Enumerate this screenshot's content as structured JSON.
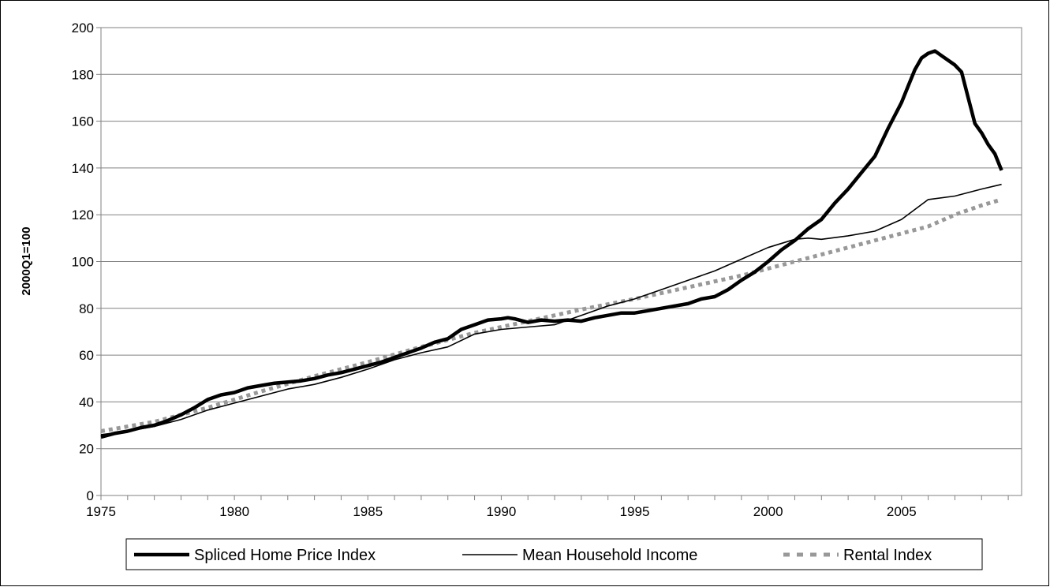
{
  "chart_data": {
    "type": "line",
    "title": "",
    "xlabel": "",
    "ylabel": "2000Q1=100",
    "xlim": [
      1975,
      2009.5
    ],
    "ylim": [
      0,
      200
    ],
    "x_ticks": [
      1975,
      1980,
      1985,
      1990,
      1995,
      2000,
      2005
    ],
    "x_tick_labels": [
      "1975",
      "1980",
      "1985",
      "1990",
      "1995",
      "2000",
      "2005"
    ],
    "y_ticks": [
      0,
      20,
      40,
      60,
      80,
      100,
      120,
      140,
      160,
      180,
      200
    ],
    "y_tick_labels": [
      "0",
      "20",
      "40",
      "60",
      "80",
      "100",
      "120",
      "140",
      "160",
      "180",
      "200"
    ],
    "grid": "horizontal",
    "legend_position": "bottom",
    "series": [
      {
        "name": "Spliced Home Price Index",
        "style": "thick-solid",
        "color": "#000000",
        "x": [
          1975,
          1975.5,
          1976,
          1976.5,
          1977,
          1977.5,
          1978,
          1978.5,
          1979,
          1979.5,
          1980,
          1980.5,
          1981,
          1981.5,
          1982,
          1982.5,
          1983,
          1983.5,
          1984,
          1984.5,
          1985,
          1985.5,
          1986,
          1986.5,
          1987,
          1987.5,
          1988,
          1988.25,
          1988.5,
          1989,
          1989.5,
          1990,
          1990.25,
          1990.5,
          1991,
          1991.5,
          1992,
          1992.5,
          1993,
          1993.5,
          1994,
          1994.5,
          1995,
          1995.5,
          1996,
          1996.5,
          1997,
          1997.5,
          1998,
          1998.5,
          1999,
          1999.5,
          2000,
          2000.5,
          2001,
          2001.5,
          2002,
          2002.5,
          2003,
          2003.5,
          2004,
          2004.5,
          2005,
          2005.25,
          2005.5,
          2005.75,
          2006,
          2006.25,
          2006.5,
          2006.75,
          2007,
          2007.25,
          2007.5,
          2007.75,
          2008,
          2008.25,
          2008.5,
          2008.75
        ],
        "y": [
          25,
          26.5,
          27.5,
          29,
          30,
          32,
          34.5,
          37.5,
          41,
          43,
          44,
          46,
          47,
          48,
          48.5,
          49,
          50,
          51.5,
          52.5,
          54,
          55.5,
          57,
          59,
          61,
          63,
          65.5,
          67,
          69,
          71,
          73,
          75,
          75.5,
          76,
          75.5,
          74,
          75,
          74.5,
          75,
          74.5,
          76,
          77,
          78,
          78,
          79,
          80,
          81,
          82,
          84,
          85,
          88,
          92,
          95.5,
          100,
          105,
          109,
          114,
          118,
          125,
          131,
          138,
          145,
          157,
          168,
          175,
          182,
          187,
          189,
          190,
          188,
          186,
          184,
          181,
          170,
          159,
          155,
          150,
          146,
          139
        ]
      },
      {
        "name": "Mean Household Income",
        "style": "thin-solid",
        "color": "#000000",
        "x": [
          1975,
          1976,
          1977,
          1978,
          1979,
          1980,
          1981,
          1982,
          1983,
          1984,
          1985,
          1986,
          1987,
          1988,
          1989,
          1990,
          1991,
          1992,
          1993,
          1994,
          1995,
          1996,
          1997,
          1998,
          1999,
          2000,
          2001,
          2001.5,
          2002,
          2003,
          2004,
          2005,
          2006,
          2007,
          2008,
          2008.75
        ],
        "y": [
          26,
          27.5,
          29.5,
          32.5,
          36.5,
          39.5,
          42.5,
          45.5,
          47.5,
          50.5,
          54,
          58,
          61,
          63.5,
          69,
          71,
          72,
          73,
          77,
          81,
          84,
          88,
          92,
          96,
          101,
          106,
          109.5,
          110,
          109.5,
          111,
          113,
          118,
          126.5,
          128,
          131,
          133
        ]
      },
      {
        "name": "Rental Index",
        "style": "dotted",
        "color": "#999999",
        "x": [
          1975,
          1977,
          1979,
          1981,
          1983,
          1985,
          1987,
          1989,
          1991,
          1993,
          1995,
          1997,
          1999,
          2001,
          2003,
          2005,
          2006,
          2007,
          2008,
          2008.75
        ],
        "y": [
          27.5,
          31.5,
          37.5,
          44.5,
          51,
          57,
          63.5,
          69.5,
          74.5,
          79.5,
          84,
          89,
          94,
          100,
          106,
          112,
          115,
          120,
          124,
          126.5
        ]
      }
    ]
  }
}
